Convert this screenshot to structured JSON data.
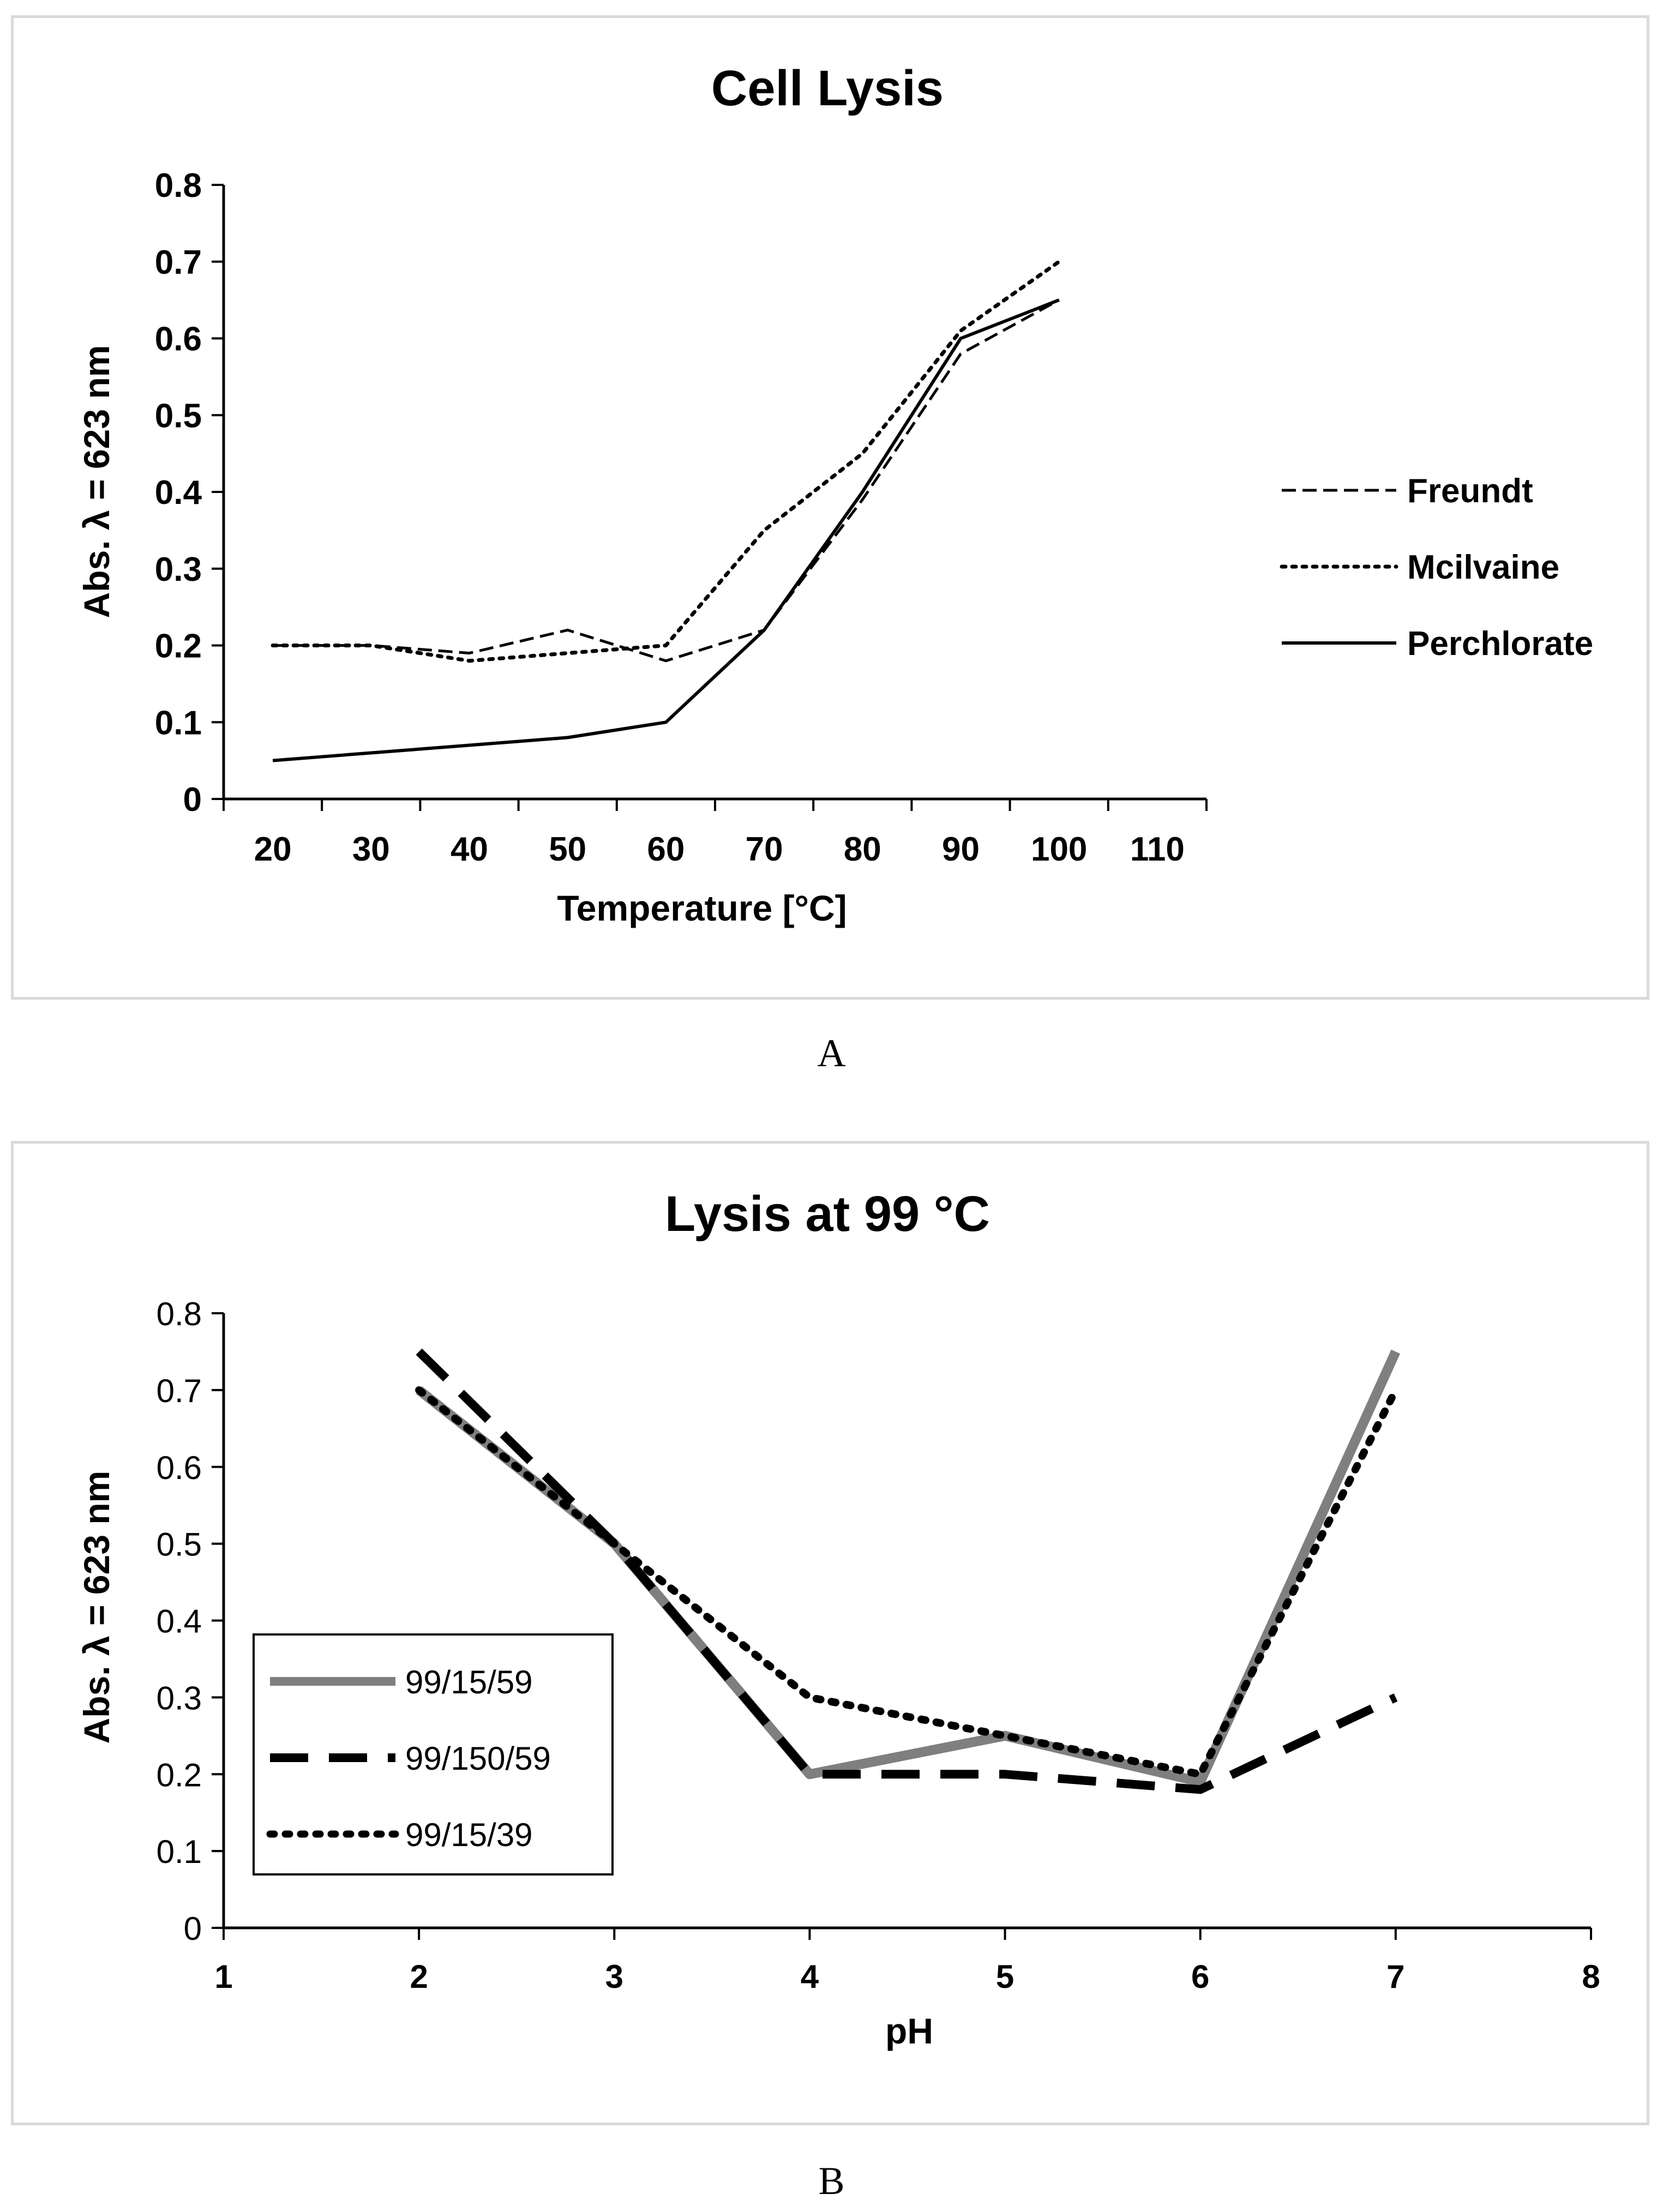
{
  "figure": {
    "caption_a": "A",
    "caption_b": "B"
  },
  "chart_data": [
    {
      "type": "line",
      "title": "Cell Lysis",
      "xlabel": "Temperature [°C]",
      "ylabel": "Abs. λ = 623 nm",
      "xlim": [
        15,
        115
      ],
      "ylim": [
        0,
        0.8
      ],
      "x_ticks": [
        20,
        30,
        40,
        50,
        60,
        70,
        80,
        90,
        100,
        110
      ],
      "y_ticks": [
        0,
        0.1,
        0.2,
        0.3,
        0.4,
        0.5,
        0.6,
        0.7,
        0.8
      ],
      "x_tick_labels": [
        "20",
        "30",
        "40",
        "50",
        "60",
        "70",
        "80",
        "90",
        "100",
        "110"
      ],
      "y_tick_labels": [
        "0",
        "0.1",
        "0.2",
        "0.3",
        "0.4",
        "0.5",
        "0.6",
        "0.7",
        "0.8"
      ],
      "grid": false,
      "legend_position": "right",
      "series": [
        {
          "name": "Freundt",
          "style": "dashed",
          "color": "#000000",
          "x": [
            20,
            30,
            40,
            50,
            60,
            70,
            80,
            90,
            100
          ],
          "y": [
            0.2,
            0.2,
            0.19,
            0.22,
            0.18,
            0.22,
            0.39,
            0.58,
            0.65
          ]
        },
        {
          "name": "Mcilvaine",
          "style": "dotted",
          "color": "#000000",
          "x": [
            20,
            30,
            40,
            50,
            60,
            70,
            80,
            90,
            100
          ],
          "y": [
            0.2,
            0.2,
            0.18,
            0.19,
            0.2,
            0.35,
            0.45,
            0.61,
            0.7
          ]
        },
        {
          "name": "Perchlorate",
          "style": "solid",
          "color": "#000000",
          "x": [
            20,
            30,
            40,
            50,
            60,
            70,
            80,
            90,
            100
          ],
          "y": [
            0.05,
            0.06,
            0.07,
            0.08,
            0.1,
            0.22,
            0.4,
            0.6,
            0.65
          ]
        }
      ]
    },
    {
      "type": "line",
      "title": "Lysis at 99 °C",
      "xlabel": "pH",
      "ylabel": "Abs. λ = 623 nm",
      "xlim": [
        1,
        8
      ],
      "ylim": [
        0,
        0.8
      ],
      "x_ticks": [
        1,
        2,
        3,
        4,
        5,
        6,
        7,
        8
      ],
      "y_ticks": [
        0,
        0.1,
        0.2,
        0.3,
        0.4,
        0.5,
        0.6,
        0.7,
        0.8
      ],
      "x_tick_labels": [
        "1",
        "2",
        "3",
        "4",
        "5",
        "6",
        "7",
        "8"
      ],
      "y_tick_labels": [
        "0",
        "0.1",
        "0.2",
        "0.3",
        "0.4",
        "0.5",
        "0.6",
        "0.7",
        "0.8"
      ],
      "grid": false,
      "legend_position": "left",
      "series": [
        {
          "name": "99/15/59",
          "style": "solid",
          "color": "#7f7f7f",
          "x": [
            2,
            3,
            4,
            5,
            6,
            7
          ],
          "y": [
            0.7,
            0.5,
            0.2,
            0.25,
            0.19,
            0.75
          ]
        },
        {
          "name": "99/150/59",
          "style": "dashed",
          "color": "#000000",
          "x": [
            2,
            3,
            4,
            5,
            6,
            7
          ],
          "y": [
            0.75,
            0.5,
            0.2,
            0.2,
            0.18,
            0.3
          ]
        },
        {
          "name": "99/15/39",
          "style": "dotted",
          "color": "#000000",
          "x": [
            2,
            3,
            4,
            5,
            6,
            7
          ],
          "y": [
            0.7,
            0.5,
            0.3,
            0.25,
            0.2,
            0.7
          ]
        }
      ]
    }
  ]
}
